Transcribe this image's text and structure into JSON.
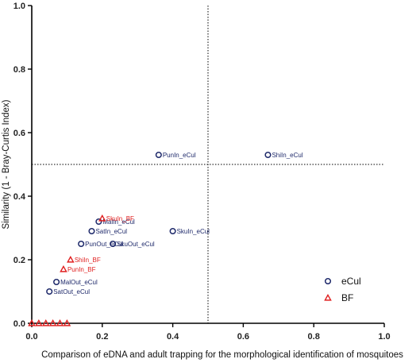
{
  "chart_data": {
    "type": "scatter",
    "title": "",
    "xlabel": "Comparison of eDNA and adult trapping for the morphological identification of mosquitoes",
    "ylabel": "Similarity (1 - Bray-Curtis Index)",
    "xlim": [
      0,
      1.0
    ],
    "ylim": [
      0,
      1.0
    ],
    "x_ticks": [
      "0.0",
      "0.2",
      "0.4",
      "0.6",
      "0.8",
      "1.0"
    ],
    "y_ticks": [
      "0.0",
      "0.2",
      "0.4",
      "0.6",
      "0.8",
      "1.0"
    ],
    "reference_lines": {
      "x": 0.5,
      "y": 0.5,
      "style": "dotted"
    },
    "grid": false,
    "legend_position": "bottom-right",
    "series": [
      {
        "name": "eCul",
        "marker": "circle",
        "color": "#1f2a6b",
        "points": [
          {
            "label": "PunIn_eCul",
            "x": 0.36,
            "y": 0.53
          },
          {
            "label": "ShiIn_eCul",
            "x": 0.67,
            "y": 0.53
          },
          {
            "label": "SkuIn_eCul",
            "x": 0.4,
            "y": 0.29
          },
          {
            "label": "MalIn_eCul",
            "x": 0.19,
            "y": 0.32
          },
          {
            "label": "SatIn_eCul",
            "x": 0.17,
            "y": 0.29
          },
          {
            "label": "SkuOut_eCul",
            "x": 0.23,
            "y": 0.25
          },
          {
            "label": "PunOut_eCul",
            "x": 0.14,
            "y": 0.25
          },
          {
            "label": "MalOut_eCul",
            "x": 0.07,
            "y": 0.13
          },
          {
            "label": "SatOut_eCul",
            "x": 0.05,
            "y": 0.1
          }
        ]
      },
      {
        "name": "BF",
        "marker": "triangle",
        "color": "#e02020",
        "points": [
          {
            "label": "SkuIn_BF",
            "x": 0.2,
            "y": 0.33
          },
          {
            "label": "ShiIn_BF",
            "x": 0.11,
            "y": 0.2
          },
          {
            "label": "PunIn_BF",
            "x": 0.09,
            "y": 0.17
          },
          {
            "label": "",
            "x": 0.0,
            "y": 0.0
          },
          {
            "label": "",
            "x": 0.02,
            "y": 0.0
          },
          {
            "label": "",
            "x": 0.04,
            "y": 0.0
          },
          {
            "label": "",
            "x": 0.06,
            "y": 0.0
          },
          {
            "label": "",
            "x": 0.08,
            "y": 0.0
          },
          {
            "label": "",
            "x": 0.1,
            "y": 0.0
          }
        ]
      }
    ]
  }
}
